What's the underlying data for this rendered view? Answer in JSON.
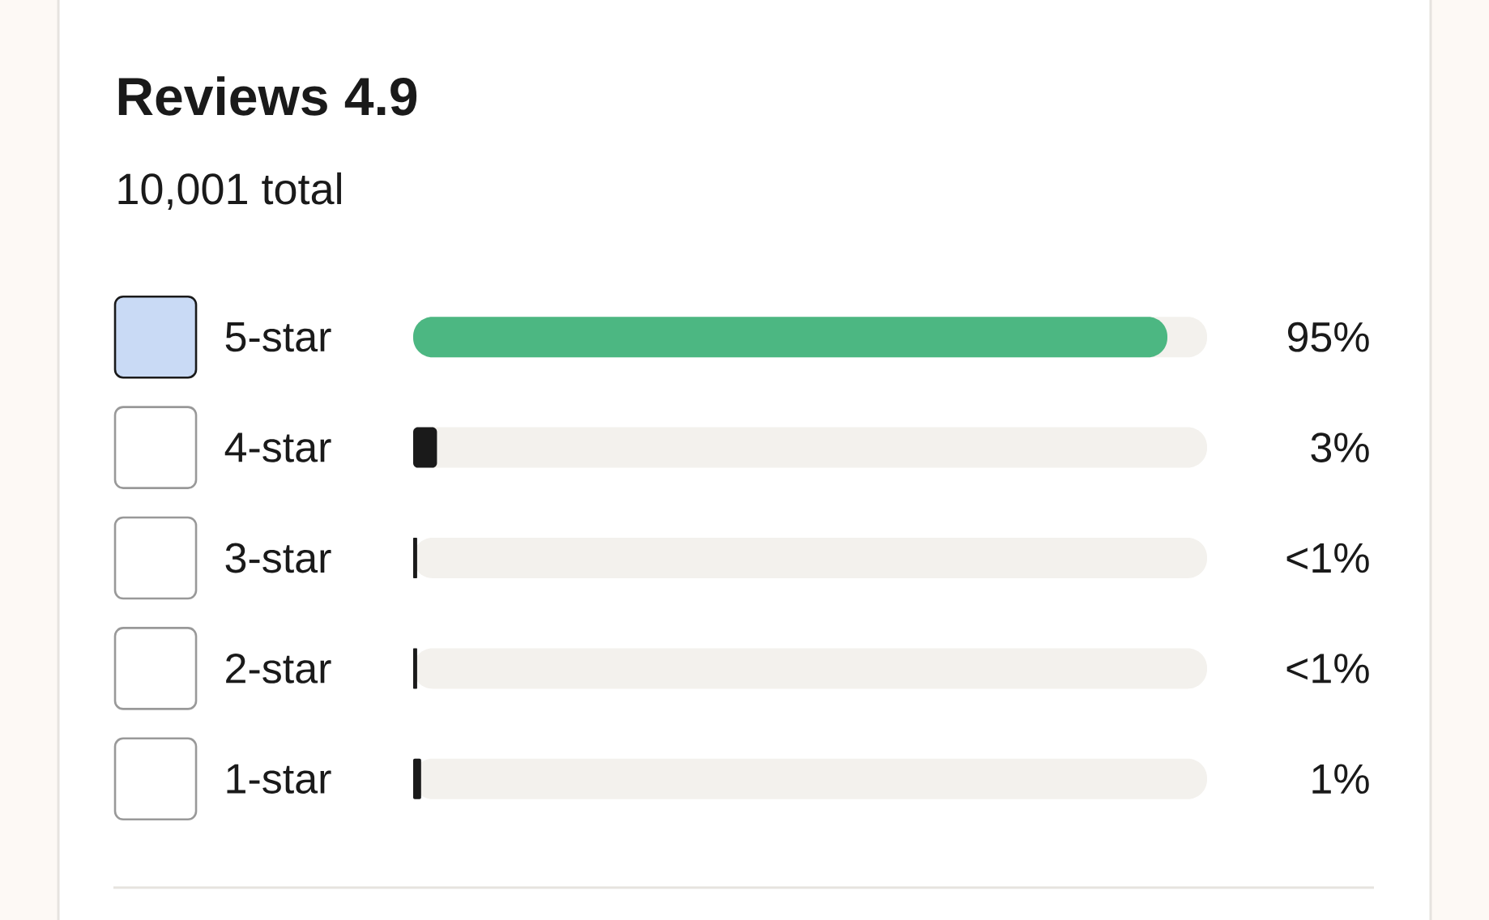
{
  "chart_data": {
    "type": "bar",
    "orientation": "horizontal",
    "title": "Reviews 4.9",
    "subtitle": "10,001 total",
    "categories": [
      "5-star",
      "4-star",
      "3-star",
      "2-star",
      "1-star"
    ],
    "values": [
      95,
      3,
      0.5,
      0.5,
      1
    ],
    "value_labels": [
      "95%",
      "3%",
      "<1%",
      "<1%",
      "1%"
    ],
    "colors": [
      "#4cb782",
      "#1a1a1a",
      "#1a1a1a",
      "#1a1a1a",
      "#1a1a1a"
    ],
    "xlim": [
      0,
      100
    ]
  }
}
